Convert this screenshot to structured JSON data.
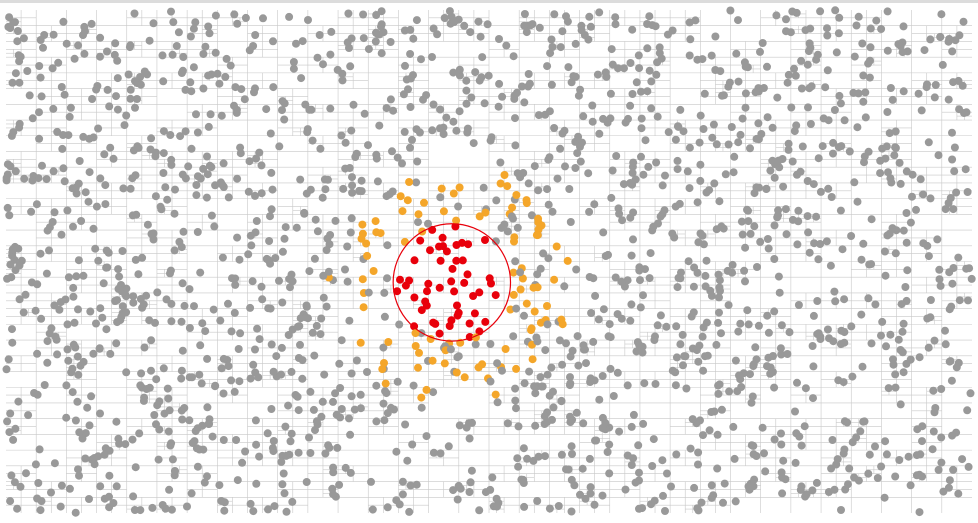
{
  "visualization": {
    "type": "quadtree-nearest-neighbor-search",
    "seed": 7,
    "point_count": 2000,
    "max_depth": 7,
    "search_radius_fraction": 0.06,
    "colors": {
      "background": "#ffffff",
      "grid_line": "#c8c8c8",
      "point": "#999999",
      "candidate": "#f4a62a",
      "found": "#e8000b",
      "search_circle": "#e8000b"
    }
  }
}
